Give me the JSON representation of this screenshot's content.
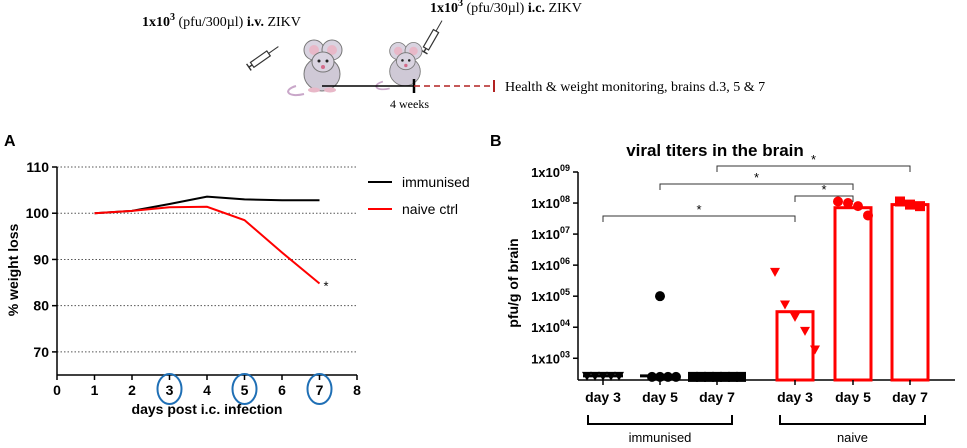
{
  "schematic": {
    "iv_dose": "1x10",
    "iv_exp": "3",
    "iv_units": " (pfu/300µl) ",
    "iv_route": "i.v.",
    "iv_virus": " ZIKV",
    "ic_dose": "1x10",
    "ic_exp": "3",
    "ic_units": " (pfu/30µl) ",
    "ic_route": "i.c.",
    "ic_virus": " ZIKV",
    "interval": "4 weeks",
    "monitoring": "Health & weight monitoring, brains d.3, 5 & 7",
    "colors": {
      "dashed": "#b22222",
      "mouse": "#c9c3cf"
    }
  },
  "chart_data": [
    {
      "panel": "A",
      "type": "line",
      "title": "",
      "xlabel": "days post i.c. infection",
      "ylabel": "% weight loss",
      "xlim": [
        0,
        8
      ],
      "ylim": [
        65,
        110
      ],
      "xticks": [
        "0",
        "1",
        "2",
        "3",
        "4",
        "5",
        "6",
        "7",
        "8"
      ],
      "yticks": [
        "70",
        "80",
        "90",
        "100",
        "110"
      ],
      "grid": "horizontal dotted",
      "legend_position": "top-right",
      "circled_days": [
        3,
        5,
        7
      ],
      "annotation": "*",
      "series": [
        {
          "name": "immunised",
          "color": "#000000",
          "x": [
            1,
            2,
            3,
            4,
            5,
            6,
            7
          ],
          "values": [
            100,
            100.5,
            102,
            103.6,
            103,
            102.8,
            102.8
          ]
        },
        {
          "name": "naive ctrl",
          "color": "#ff0000",
          "x": [
            1,
            2,
            3,
            4,
            5,
            6,
            7
          ],
          "values": [
            100,
            100.5,
            101.3,
            101.4,
            98.5,
            91.5,
            84.8
          ]
        }
      ]
    },
    {
      "panel": "B",
      "type": "bar",
      "title": "viral titers in the brain",
      "ylabel": "pfu/g of brain",
      "yscale": "log10",
      "ylim_log10": [
        2.3,
        9
      ],
      "ytick_base": "1x10",
      "ytick_exps": [
        "03",
        "04",
        "05",
        "06",
        "07",
        "08",
        "09"
      ],
      "categories": [
        "day 3",
        "day 5",
        "day 7",
        "day 3",
        "day 5",
        "day 7"
      ],
      "groups": [
        {
          "label": "immunised",
          "categories": [
            0,
            1,
            2
          ]
        },
        {
          "label": "naive",
          "categories": [
            3,
            4,
            5
          ]
        }
      ],
      "series": [
        {
          "name": "immunised",
          "color": "#000000",
          "bars_log10": [
            2.4,
            2.4,
            2.4
          ],
          "points_log10": [
            [
              2.4,
              2.4,
              2.4,
              2.4,
              2.4
            ],
            [
              5.0,
              2.4,
              2.4,
              2.4,
              2.4
            ],
            [
              2.4,
              2.4,
              2.4,
              2.4,
              2.4,
              2.4,
              2.4
            ]
          ],
          "markers": [
            "triangle-down",
            "circle",
            "square"
          ]
        },
        {
          "name": "naive",
          "color": "#ff0000",
          "bars_log10": [
            4.5,
            7.85,
            7.95
          ],
          "points_log10": [
            [
              5.75,
              4.7,
              4.3,
              3.85,
              3.25
            ],
            [
              8.05,
              8.0,
              7.9,
              7.6
            ],
            [
              8.05,
              7.95,
              7.9
            ]
          ],
          "markers": [
            "triangle-down",
            "circle",
            "square"
          ]
        }
      ],
      "significance": [
        {
          "from": 0,
          "to": 3,
          "label": "*"
        },
        {
          "from": 3,
          "to": 4,
          "label": "*"
        },
        {
          "from": 1,
          "to": 4,
          "label": "*"
        },
        {
          "from": 2,
          "to": 5,
          "label": "*"
        }
      ]
    }
  ],
  "panel_labels": [
    "A",
    "B"
  ]
}
